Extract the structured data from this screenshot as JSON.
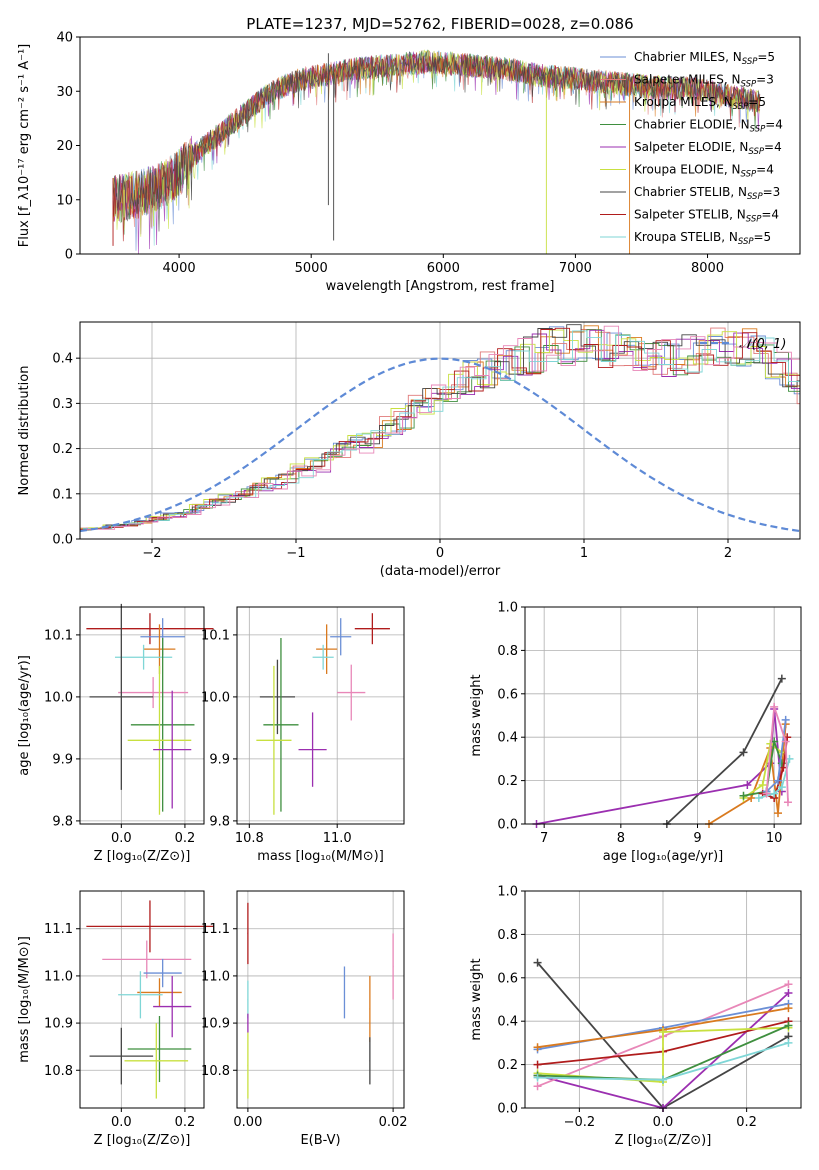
{
  "title": "PLATE=1237, MJD=52762, FIBERID=0028, z=0.086",
  "colors": {
    "Chabrier MILES": "#6b8fd6",
    "Salpeter MILES": "#e07a7a",
    "Kroupa MILES": "#d97a1f",
    "Chabrier ELODIE": "#3f8f3f",
    "Salpeter ELODIE": "#9b2fb0",
    "Kroupa ELODIE": "#c8e040",
    "Chabrier STELIB": "#454545",
    "Salpeter STELIB": "#b01c1c",
    "Kroupa STELIB": "#7fd6d6",
    "pink": "#e887b8",
    "gaussian": "#5e8ad6"
  },
  "chart_data": [
    {
      "type": "line",
      "panel": "spectrum",
      "xlabel": "wavelength [Angstrom, rest frame]",
      "ylabel": "Flux [f_λ10⁻¹⁷ erg cm⁻² s⁻¹ A⁻¹]",
      "xlim": [
        3250,
        8700
      ],
      "ylim": [
        0,
        40
      ],
      "xticks": [
        4000,
        5000,
        6000,
        7000,
        8000
      ],
      "yticks": [
        0,
        10,
        20,
        30,
        40
      ],
      "legend_position": "right",
      "legend": [
        {
          "base": "Chabrier MILES, N",
          "sub": "SSP",
          "tail": "=5"
        },
        {
          "base": "Salpeter MILES, N",
          "sub": "SSP",
          "tail": "=3"
        },
        {
          "base": "Kroupa MILES, N",
          "sub": "SSP",
          "tail": "=5"
        },
        {
          "base": "Chabrier ELODIE, N",
          "sub": "SSP",
          "tail": "=4"
        },
        {
          "base": "Salpeter ELODIE, N",
          "sub": "SSP",
          "tail": "=4"
        },
        {
          "base": "Kroupa ELODIE, N",
          "sub": "SSP",
          "tail": "=4"
        },
        {
          "base": "Chabrier STELIB, N",
          "sub": "SSP",
          "tail": "=3"
        },
        {
          "base": "Salpeter STELIB, N",
          "sub": "SSP",
          "tail": "=4"
        },
        {
          "base": "Kroupa STELIB, N",
          "sub": "SSP",
          "tail": "=5"
        }
      ],
      "continuum": {
        "x": [
          3500,
          3700,
          3900,
          4000,
          4100,
          4300,
          4500,
          4700,
          4900,
          5100,
          5300,
          5500,
          5700,
          5900,
          6100,
          6300,
          6500,
          6700,
          6900,
          7100,
          7300,
          7500,
          7700,
          7900,
          8100,
          8300,
          8400
        ],
        "y": [
          10,
          11,
          13,
          15,
          18,
          22,
          26,
          30,
          32,
          33,
          34,
          34.5,
          35,
          35.5,
          35,
          34.5,
          34,
          33,
          32.5,
          32,
          31.5,
          31,
          30.5,
          30.5,
          29.5,
          28.5,
          28
        ]
      },
      "spikes": [
        {
          "x": 5130,
          "y_low": 9,
          "y_high": 37,
          "series": "Chabrier STELIB"
        },
        {
          "x": 5170,
          "y_low": 2.5,
          "y_high": 35,
          "series": "Chabrier STELIB"
        },
        {
          "x": 6780,
          "y_low": 0,
          "y_high": 33,
          "series": "Kroupa ELODIE"
        },
        {
          "x": 7410,
          "y_low": 0,
          "y_high": 32,
          "series": "Kroupa MILES"
        },
        {
          "x": 3500,
          "y_low": 1.5,
          "y_high": 14,
          "series": "Salpeter STELIB"
        }
      ]
    },
    {
      "type": "area",
      "panel": "residual-histogram",
      "xlabel": "(data-model)/error",
      "ylabel": "Normed distribution",
      "xlim": [
        -2.5,
        2.5
      ],
      "ylim": [
        0,
        0.48
      ],
      "xticks": [
        -2,
        -1,
        0,
        1,
        2
      ],
      "yticks": [
        0,
        0.1,
        0.2,
        0.3,
        0.4
      ],
      "legend_position": "top-right",
      "legend_label": "𝒩(0, 1)",
      "bin_width": 0.1,
      "bin_start": -2.5,
      "base_heights": [
        0.022,
        0.024,
        0.028,
        0.032,
        0.038,
        0.045,
        0.052,
        0.06,
        0.07,
        0.08,
        0.09,
        0.1,
        0.112,
        0.124,
        0.138,
        0.152,
        0.166,
        0.18,
        0.195,
        0.21,
        0.226,
        0.245,
        0.265,
        0.29,
        0.31,
        0.33,
        0.345,
        0.36,
        0.375,
        0.39,
        0.4,
        0.41,
        0.42,
        0.425,
        0.43,
        0.43,
        0.425,
        0.42,
        0.415,
        0.405,
        0.4,
        0.405,
        0.41,
        0.42,
        0.425,
        0.43,
        0.42,
        0.405,
        0.385,
        0.36,
        0.335,
        0.31,
        0.28,
        0.26,
        0.24,
        0.22,
        0.2,
        0.18,
        0.16,
        0.145,
        0.13,
        0.115,
        0.1,
        0.09,
        0.08,
        0.07,
        0.06,
        0.052,
        0.046,
        0.04,
        0.035,
        0.03,
        0.026,
        0.022,
        0.018,
        0.015,
        0.013,
        0.011,
        0.01,
        0.008
      ],
      "normal_curve": "N(0,1)"
    },
    {
      "type": "scatter",
      "panel": "age-vs-Z",
      "xlabel": "Z [log₁₀(Z/Z⊙)]",
      "ylabel": "age  [log₁₀(age/yr)]",
      "xlim": [
        -0.13,
        0.26
      ],
      "ylim": [
        9.795,
        10.145
      ],
      "xticks": [
        0.0,
        0.2
      ],
      "yticks": [
        9.8,
        9.9,
        10.0,
        10.1
      ],
      "points": [
        {
          "series": "Salpeter STELIB",
          "x": 0.09,
          "y": 10.11,
          "xerr": 0.2,
          "yerr": 0.025
        },
        {
          "series": "Chabrier MILES",
          "x": 0.13,
          "y": 10.097,
          "xerr": 0.07,
          "yerr": 0.03
        },
        {
          "series": "Kroupa MILES",
          "x": 0.12,
          "y": 10.077,
          "xerr": 0.05,
          "yerr": 0.04
        },
        {
          "series": "Kroupa STELIB",
          "x": 0.07,
          "y": 10.064,
          "xerr": 0.09,
          "yerr": 0.02
        },
        {
          "series": "pink",
          "x": 0.1,
          "y": 10.007,
          "xerr": 0.11,
          "yerr": 0.025
        },
        {
          "series": "Chabrier STELIB",
          "x": 0.0,
          "y": 10.0,
          "xerr": 0.1,
          "yerr": 0.15
        },
        {
          "series": "Chabrier ELODIE",
          "x": 0.13,
          "y": 9.955,
          "xerr": 0.1,
          "yerr": 0.14
        },
        {
          "series": "Kroupa ELODIE",
          "x": 0.12,
          "y": 9.93,
          "xerr": 0.1,
          "yerr": 0.12
        },
        {
          "series": "Salpeter ELODIE",
          "x": 0.16,
          "y": 9.915,
          "xerr": 0.06,
          "yerr": 0.095
        }
      ]
    },
    {
      "type": "scatter",
      "panel": "age-vs-mass",
      "xlabel": "mass [log₁₀(M/M⊙)]",
      "ylabel": "",
      "xlim": [
        10.715,
        11.19
      ],
      "ylim": [
        9.795,
        10.145
      ],
      "xticks": [
        10.75,
        11.0
      ],
      "yticks": [
        9.8,
        9.9,
        10.0,
        10.1
      ],
      "points": [
        {
          "series": "Salpeter STELIB",
          "x": 11.1,
          "y": 10.11,
          "xerr": 0.05,
          "yerr": 0.025
        },
        {
          "series": "Chabrier MILES",
          "x": 11.01,
          "y": 10.097,
          "xerr": 0.03,
          "yerr": 0.03
        },
        {
          "series": "Kroupa MILES",
          "x": 10.97,
          "y": 10.077,
          "xerr": 0.03,
          "yerr": 0.04
        },
        {
          "series": "Kroupa STELIB",
          "x": 10.96,
          "y": 10.064,
          "xerr": 0.03,
          "yerr": 0.02
        },
        {
          "series": "pink",
          "x": 11.04,
          "y": 10.007,
          "xerr": 0.04,
          "yerr": 0.045
        },
        {
          "series": "Chabrier STELIB",
          "x": 10.83,
          "y": 10.0,
          "xerr": 0.05,
          "yerr": 0.06
        },
        {
          "series": "Chabrier ELODIE",
          "x": 10.84,
          "y": 9.955,
          "xerr": 0.05,
          "yerr": 0.14
        },
        {
          "series": "Kroupa ELODIE",
          "x": 10.82,
          "y": 9.93,
          "xerr": 0.05,
          "yerr": 0.12
        },
        {
          "series": "Salpeter ELODIE",
          "x": 10.93,
          "y": 9.915,
          "xerr": 0.04,
          "yerr": 0.06
        }
      ]
    },
    {
      "type": "line",
      "panel": "mass-weight-vs-age",
      "xlabel": "age  [log₁₀(age/yr)]",
      "ylabel": "mass weight",
      "xlim": [
        6.75,
        10.35
      ],
      "ylim": [
        0,
        1.0
      ],
      "xticks": [
        7,
        8,
        9,
        10
      ],
      "yticks": [
        0.0,
        0.2,
        0.4,
        0.6,
        0.8,
        1.0
      ],
      "series": [
        {
          "name": "Chabrier STELIB",
          "x": [
            8.6,
            9.6,
            10.1
          ],
          "y": [
            0.0,
            0.33,
            0.67
          ]
        },
        {
          "name": "Salpeter ELODIE",
          "x": [
            6.9,
            9.65,
            9.95,
            10.0,
            10.1
          ],
          "y": [
            0.0,
            0.18,
            0.28,
            0.53,
            0.15
          ]
        },
        {
          "name": "Kroupa MILES",
          "x": [
            9.15,
            9.7,
            9.95,
            10.05,
            10.15
          ],
          "y": [
            0.0,
            0.12,
            0.35,
            0.05,
            0.46
          ]
        },
        {
          "name": "Kroupa ELODIE",
          "x": [
            9.6,
            9.85,
            9.95,
            10.1
          ],
          "y": [
            0.12,
            0.18,
            0.37,
            0.33
          ]
        },
        {
          "name": "Chabrier ELODIE",
          "x": [
            9.6,
            9.9,
            10.0,
            10.1
          ],
          "y": [
            0.13,
            0.15,
            0.38,
            0.28
          ]
        },
        {
          "name": "Salpeter STELIB",
          "x": [
            9.85,
            10.0,
            10.12,
            10.17
          ],
          "y": [
            0.14,
            0.12,
            0.26,
            0.4
          ]
        },
        {
          "name": "Kroupa STELIB",
          "x": [
            9.8,
            10.0,
            10.1,
            10.2
          ],
          "y": [
            0.12,
            0.14,
            0.17,
            0.3
          ]
        },
        {
          "name": "Chabrier MILES",
          "x": [
            9.9,
            10.05,
            10.15
          ],
          "y": [
            0.15,
            0.2,
            0.48
          ]
        },
        {
          "name": "pink",
          "x": [
            9.9,
            10.0,
            10.15,
            10.18
          ],
          "y": [
            0.14,
            0.54,
            0.38,
            0.1
          ]
        }
      ]
    },
    {
      "type": "scatter",
      "panel": "mass-vs-Z",
      "xlabel": "Z [log₁₀(Z/Z⊙)]",
      "ylabel": "mass [log₁₀(M/M⊙)]",
      "xlim": [
        -0.13,
        0.26
      ],
      "ylim": [
        10.72,
        11.18
      ],
      "xticks": [
        0.0,
        0.2
      ],
      "yticks": [
        10.8,
        10.9,
        11.0,
        11.1
      ],
      "points": [
        {
          "series": "Salpeter STELIB",
          "x": 0.09,
          "y": 11.105,
          "xerr": 0.2,
          "yerr": 0.055
        },
        {
          "series": "pink",
          "x": 0.08,
          "y": 11.035,
          "xerr": 0.14,
          "yerr": 0.04
        },
        {
          "series": "Chabrier MILES",
          "x": 0.13,
          "y": 11.006,
          "xerr": 0.06,
          "yerr": 0.03
        },
        {
          "series": "Kroupa MILES",
          "x": 0.12,
          "y": 10.965,
          "xerr": 0.07,
          "yerr": 0.03
        },
        {
          "series": "Kroupa STELIB",
          "x": 0.06,
          "y": 10.96,
          "xerr": 0.07,
          "yerr": 0.05
        },
        {
          "series": "Salpeter ELODIE",
          "x": 0.16,
          "y": 10.935,
          "xerr": 0.06,
          "yerr": 0.065
        },
        {
          "series": "Chabrier ELODIE",
          "x": 0.12,
          "y": 10.845,
          "xerr": 0.1,
          "yerr": 0.07
        },
        {
          "series": "Chabrier STELIB",
          "x": 0.0,
          "y": 10.83,
          "xerr": 0.1,
          "yerr": 0.06
        },
        {
          "series": "Kroupa ELODIE",
          "x": 0.11,
          "y": 10.82,
          "xerr": 0.1,
          "yerr": 0.08
        }
      ]
    },
    {
      "type": "scatter",
      "panel": "mass-vs-EBV",
      "xlabel": "E(B-V)",
      "ylabel": "",
      "xlim": [
        -0.0015,
        0.0215
      ],
      "ylim": [
        10.72,
        11.18
      ],
      "xticks": [
        0.0,
        0.02
      ],
      "xtick_labels": [
        "0.00",
        "0.02"
      ],
      "yticks": [
        10.8,
        10.9,
        11.0,
        11.1
      ],
      "points": [
        {
          "series": "Salpeter STELIB",
          "x": 0.0,
          "y": 11.09,
          "yerr": 0.065
        },
        {
          "series": "Kroupa STELIB",
          "x": 0.0,
          "y": 10.95,
          "yerr": 0.04
        },
        {
          "series": "Salpeter ELODIE",
          "x": 0.0,
          "y": 10.9,
          "yerr": 0.02
        },
        {
          "series": "Kroupa ELODIE",
          "x": 0.0,
          "y": 10.81,
          "yerr": 0.07
        },
        {
          "series": "Chabrier MILES",
          "x": 0.0133,
          "y": 10.965,
          "yerr": 0.055
        },
        {
          "series": "Kroupa MILES",
          "x": 0.0168,
          "y": 10.93,
          "yerr": 0.07
        },
        {
          "series": "Chabrier STELIB",
          "x": 0.0168,
          "y": 10.82,
          "yerr": 0.05
        },
        {
          "series": "pink",
          "x": 0.02,
          "y": 11.02,
          "yerr": 0.07
        }
      ]
    },
    {
      "type": "line",
      "panel": "mass-weight-vs-Z",
      "xlabel": "Z [log₁₀(Z/Z⊙)]",
      "ylabel": "mass weight",
      "xlim": [
        -0.33,
        0.33
      ],
      "ylim": [
        0,
        1.0
      ],
      "xticks": [
        -0.2,
        0.0,
        0.2
      ],
      "yticks": [
        0.0,
        0.2,
        0.4,
        0.6,
        0.8,
        1.0
      ],
      "series": [
        {
          "name": "Chabrier STELIB",
          "x": [
            -0.3,
            0.0,
            0.3
          ],
          "y": [
            0.67,
            0.0,
            0.33
          ]
        },
        {
          "name": "Salpeter ELODIE",
          "x": [
            -0.3,
            0.0,
            0.3
          ],
          "y": [
            0.15,
            0.0,
            0.53
          ]
        },
        {
          "name": "pink",
          "x": [
            -0.3,
            0.0,
            0.3
          ],
          "y": [
            0.1,
            0.33,
            0.57
          ]
        },
        {
          "name": "Chabrier MILES",
          "x": [
            -0.3,
            0.0,
            0.3
          ],
          "y": [
            0.27,
            0.37,
            0.48
          ]
        },
        {
          "name": "Kroupa MILES",
          "x": [
            -0.3,
            0.0,
            0.3
          ],
          "y": [
            0.28,
            0.36,
            0.46
          ]
        },
        {
          "name": "Salpeter STELIB",
          "x": [
            -0.3,
            0.0,
            0.3
          ],
          "y": [
            0.2,
            0.26,
            0.4
          ]
        },
        {
          "name": "Kroupa ELODIE",
          "x": [
            -0.3,
            0.0,
            0.0,
            0.3
          ],
          "y": [
            0.16,
            0.12,
            0.35,
            0.37
          ]
        },
        {
          "name": "Chabrier ELODIE",
          "x": [
            -0.3,
            0.0,
            0.3
          ],
          "y": [
            0.15,
            0.13,
            0.38
          ]
        },
        {
          "name": "Kroupa STELIB",
          "x": [
            -0.3,
            0.0,
            0.3
          ],
          "y": [
            0.14,
            0.13,
            0.3
          ]
        }
      ]
    }
  ]
}
